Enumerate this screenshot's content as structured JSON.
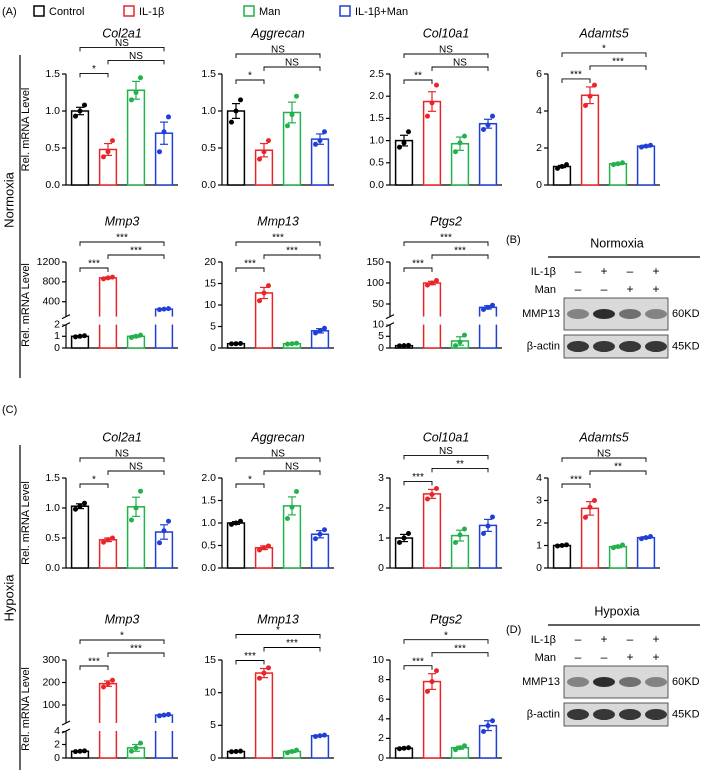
{
  "panels": [
    "(A)",
    "(C)"
  ],
  "conditions": [
    "Normoxia",
    "Hypoxia"
  ],
  "legend": [
    {
      "name": "Control",
      "color": "#000000"
    },
    {
      "name": "IL-1β",
      "color": "#e8262a"
    },
    {
      "name": "Man",
      "color": "#22b14c"
    },
    {
      "name": "IL-1β+Man",
      "color": "#1f3fd6"
    }
  ],
  "chart_data": [
    {
      "type": "bar",
      "title": "Col2a1",
      "ylabel": "Rel. mRNA Level",
      "values": [
        1.0,
        0.48,
        1.28,
        0.7
      ],
      "errors": [
        0.05,
        0.08,
        0.12,
        0.15
      ],
      "points": [
        [
          0.93,
          1.0,
          1.08
        ],
        [
          0.38,
          0.45,
          0.6
        ],
        [
          1.15,
          1.25,
          1.45
        ],
        [
          0.45,
          0.72,
          0.92
        ]
      ],
      "ylim": [
        0,
        1.5
      ],
      "yticks": [
        {
          "value": 0,
          "label": "0.0"
        },
        0.5,
        {
          "value": 1,
          "label": "1.0"
        },
        1.5
      ],
      "brackets": [
        {
          "pair": [
            0,
            1
          ],
          "label": "*"
        },
        {
          "pair": [
            1,
            3
          ],
          "label": "NS"
        },
        {
          "pair": [
            0,
            3
          ],
          "label": "NS"
        }
      ]
    },
    {
      "type": "bar",
      "title": "Aggrecan",
      "values": [
        1.0,
        0.47,
        0.98,
        0.62
      ],
      "errors": [
        0.1,
        0.09,
        0.14,
        0.07
      ],
      "points": [
        [
          0.85,
          1.0,
          1.15
        ],
        [
          0.35,
          0.45,
          0.6
        ],
        [
          0.8,
          0.95,
          1.2
        ],
        [
          0.55,
          0.6,
          0.72
        ]
      ],
      "ylim": [
        0,
        1.5
      ],
      "yticks": [
        {
          "value": 0,
          "label": "0.0"
        },
        0.5,
        {
          "value": 1,
          "label": "1.0"
        },
        1.5
      ],
      "brackets": [
        {
          "pair": [
            0,
            1
          ],
          "label": "*"
        },
        {
          "pair": [
            1,
            3
          ],
          "label": "NS"
        },
        {
          "pair": [
            0,
            3
          ],
          "label": "NS"
        }
      ]
    },
    {
      "type": "bar",
      "title": "Col10a1",
      "values": [
        1.0,
        1.88,
        0.93,
        1.38
      ],
      "errors": [
        0.12,
        0.22,
        0.15,
        0.1
      ],
      "points": [
        [
          0.85,
          0.95,
          1.2
        ],
        [
          1.55,
          1.85,
          2.25
        ],
        [
          0.75,
          0.95,
          1.1
        ],
        [
          1.25,
          1.35,
          1.55
        ]
      ],
      "ylim": [
        0,
        2.5
      ],
      "yticks": [
        {
          "value": 0,
          "label": "0.0"
        },
        0.5,
        {
          "value": 1,
          "label": "1.0"
        },
        1.5,
        {
          "value": 2,
          "label": "2.0"
        },
        2.5
      ],
      "brackets": [
        {
          "pair": [
            0,
            1
          ],
          "label": "**"
        },
        {
          "pair": [
            1,
            3
          ],
          "label": "NS"
        },
        {
          "pair": [
            0,
            3
          ],
          "label": "NS"
        }
      ]
    },
    {
      "type": "bar",
      "title": "Adamts5",
      "values": [
        1.0,
        4.85,
        1.15,
        2.1
      ],
      "errors": [
        0.06,
        0.45,
        0.05,
        0.05
      ],
      "points": [
        [
          0.9,
          1.0,
          1.1
        ],
        [
          4.3,
          4.8,
          5.4
        ],
        [
          1.1,
          1.15,
          1.2
        ],
        [
          2.05,
          2.1,
          2.15
        ]
      ],
      "ylim": [
        0,
        6
      ],
      "yticks": [
        0,
        2,
        4,
        6
      ],
      "brackets": [
        {
          "pair": [
            0,
            1
          ],
          "label": "***"
        },
        {
          "pair": [
            1,
            3
          ],
          "label": "***"
        },
        {
          "pair": [
            0,
            3
          ],
          "label": "*"
        }
      ]
    },
    {
      "type": "bar",
      "title": "Mmp3",
      "ylabel": "Rel. mRNA Level",
      "values": [
        1.0,
        880,
        1.0,
        250
      ],
      "errors": [
        0.05,
        15,
        0.08,
        10
      ],
      "points": [
        [
          0.95,
          1.0,
          1.05
        ],
        [
          860,
          880,
          895
        ],
        [
          0.9,
          1.0,
          1.1
        ],
        [
          240,
          250,
          260
        ]
      ],
      "segments": [
        {
          "ylim": [
            0,
            2
          ],
          "yticks": [
            0,
            1,
            2
          ]
        },
        {
          "ylim": [
            100,
            1200
          ],
          "yticks": [
            400,
            800,
            1200
          ]
        }
      ],
      "brackets": [
        {
          "pair": [
            0,
            1
          ],
          "label": "***"
        },
        {
          "pair": [
            1,
            3
          ],
          "label": "***"
        },
        {
          "pair": [
            0,
            3
          ],
          "label": "***"
        }
      ]
    },
    {
      "type": "bar",
      "title": "Mmp13",
      "values": [
        1.0,
        12.8,
        1.0,
        4.0
      ],
      "errors": [
        0.05,
        1.3,
        0.1,
        0.5
      ],
      "points": [
        [
          0.95,
          1.0,
          1.05
        ],
        [
          11,
          12.8,
          14.5
        ],
        [
          0.9,
          1.0,
          1.1
        ],
        [
          3.5,
          4.0,
          4.6
        ]
      ],
      "ylim": [
        0,
        20
      ],
      "yticks": [
        0,
        5,
        10,
        15,
        20
      ],
      "brackets": [
        {
          "pair": [
            0,
            1
          ],
          "label": "***"
        },
        {
          "pair": [
            1,
            3
          ],
          "label": "***"
        },
        {
          "pair": [
            0,
            3
          ],
          "label": "***"
        }
      ]
    },
    {
      "type": "bar",
      "title": "Ptgs2",
      "values": [
        1.0,
        100,
        3.0,
        42
      ],
      "errors": [
        0.05,
        4,
        1.8,
        4
      ],
      "points": [
        [
          0.9,
          1.0,
          1.1
        ],
        [
          95,
          100,
          106
        ],
        [
          1.0,
          2.5,
          5.5
        ],
        [
          37,
          42,
          47
        ]
      ],
      "segments": [
        {
          "ylim": [
            0,
            10
          ],
          "yticks": [
            0,
            5,
            10
          ]
        },
        {
          "ylim": [
            20,
            150
          ],
          "yticks": [
            50,
            100,
            150
          ]
        }
      ],
      "brackets": [
        {
          "pair": [
            0,
            1
          ],
          "label": "***"
        },
        {
          "pair": [
            1,
            3
          ],
          "label": "***"
        },
        {
          "pair": [
            0,
            3
          ],
          "label": "***"
        }
      ]
    },
    {
      "type": "bar",
      "title": "Col2a1",
      "ylabel": "Rel. mRNA Level",
      "values": [
        1.03,
        0.47,
        1.02,
        0.6
      ],
      "errors": [
        0.04,
        0.03,
        0.16,
        0.12
      ],
      "points": [
        [
          0.98,
          1.03,
          1.08
        ],
        [
          0.43,
          0.47,
          0.5
        ],
        [
          0.8,
          1.0,
          1.28
        ],
        [
          0.42,
          0.62,
          0.78
        ]
      ],
      "ylim": [
        0,
        1.5
      ],
      "yticks": [
        {
          "value": 0,
          "label": "0.0"
        },
        0.5,
        {
          "value": 1,
          "label": "1.0"
        },
        1.5
      ],
      "brackets": [
        {
          "pair": [
            0,
            1
          ],
          "label": "*"
        },
        {
          "pair": [
            1,
            3
          ],
          "label": "NS"
        },
        {
          "pair": [
            0,
            3
          ],
          "label": "NS"
        }
      ]
    },
    {
      "type": "bar",
      "title": "Aggrecan",
      "values": [
        1.0,
        0.45,
        1.38,
        0.75
      ],
      "errors": [
        0.03,
        0.04,
        0.2,
        0.08
      ],
      "points": [
        [
          0.97,
          1.0,
          1.04
        ],
        [
          0.4,
          0.45,
          0.49
        ],
        [
          1.1,
          1.35,
          1.7
        ],
        [
          0.65,
          0.75,
          0.85
        ]
      ],
      "ylim": [
        0,
        2
      ],
      "yticks": [
        {
          "value": 0,
          "label": "0.0"
        },
        0.5,
        {
          "value": 1,
          "label": "1.0"
        },
        1.5,
        {
          "value": 2,
          "label": "2.0"
        }
      ],
      "brackets": [
        {
          "pair": [
            0,
            1
          ],
          "label": "*"
        },
        {
          "pair": [
            1,
            3
          ],
          "label": "NS"
        },
        {
          "pair": [
            0,
            3
          ],
          "label": "NS"
        }
      ]
    },
    {
      "type": "bar",
      "title": "Col10a1",
      "values": [
        1.0,
        2.47,
        1.08,
        1.42
      ],
      "errors": [
        0.12,
        0.15,
        0.18,
        0.2
      ],
      "points": [
        [
          0.85,
          1.0,
          1.15
        ],
        [
          2.3,
          2.45,
          2.65
        ],
        [
          0.85,
          1.1,
          1.3
        ],
        [
          1.15,
          1.4,
          1.7
        ]
      ],
      "ylim": [
        0,
        3
      ],
      "yticks": [
        0,
        1,
        2,
        3
      ],
      "brackets": [
        {
          "pair": [
            0,
            1
          ],
          "label": "***"
        },
        {
          "pair": [
            1,
            3
          ],
          "label": "**"
        },
        {
          "pair": [
            0,
            3
          ],
          "label": "NS"
        }
      ]
    },
    {
      "type": "bar",
      "title": "Adamts5",
      "values": [
        1.0,
        2.65,
        0.95,
        1.35
      ],
      "errors": [
        0.03,
        0.3,
        0.05,
        0.04
      ],
      "points": [
        [
          0.98,
          1.0,
          1.03
        ],
        [
          2.25,
          2.7,
          3.0
        ],
        [
          0.9,
          0.95,
          1.02
        ],
        [
          1.3,
          1.35,
          1.4
        ]
      ],
      "ylim": [
        0,
        4
      ],
      "yticks": [
        0,
        1,
        2,
        3,
        4
      ],
      "brackets": [
        {
          "pair": [
            0,
            1
          ],
          "label": "***"
        },
        {
          "pair": [
            1,
            3
          ],
          "label": "**"
        },
        {
          "pair": [
            0,
            3
          ],
          "label": "NS"
        }
      ]
    },
    {
      "type": "bar",
      "title": "Mmp3",
      "ylabel": "Rel. mRNA Level",
      "values": [
        1.0,
        195,
        1.5,
        55
      ],
      "errors": [
        0.05,
        12,
        0.5,
        3
      ],
      "points": [
        [
          0.95,
          1.0,
          1.05
        ],
        [
          180,
          195,
          210
        ],
        [
          1.0,
          1.5,
          2.2
        ],
        [
          52,
          55,
          58
        ]
      ],
      "segments": [
        {
          "ylim": [
            0,
            4
          ],
          "yticks": [
            0,
            2,
            4
          ]
        },
        {
          "ylim": [
            20,
            300
          ],
          "yticks": [
            100,
            200,
            300
          ]
        }
      ],
      "brackets": [
        {
          "pair": [
            0,
            1
          ],
          "label": "***"
        },
        {
          "pair": [
            1,
            3
          ],
          "label": "***"
        },
        {
          "pair": [
            0,
            3
          ],
          "label": "*"
        }
      ]
    },
    {
      "type": "bar",
      "title": "Mmp13",
      "values": [
        1.0,
        13.0,
        1.0,
        3.4
      ],
      "errors": [
        0.05,
        0.7,
        0.15,
        0.1
      ],
      "points": [
        [
          0.95,
          1.0,
          1.05
        ],
        [
          12.2,
          13,
          13.8
        ],
        [
          0.8,
          1.0,
          1.2
        ],
        [
          3.3,
          3.4,
          3.5
        ]
      ],
      "ylim": [
        0,
        15
      ],
      "yticks": [
        0,
        5,
        10,
        15
      ],
      "brackets": [
        {
          "pair": [
            0,
            1
          ],
          "label": "***"
        },
        {
          "pair": [
            1,
            3
          ],
          "label": "***"
        },
        {
          "pair": [
            0,
            3
          ],
          "label": "*"
        }
      ]
    },
    {
      "type": "bar",
      "title": "Ptgs2",
      "values": [
        1.0,
        7.8,
        1.05,
        3.3
      ],
      "errors": [
        0.05,
        0.8,
        0.15,
        0.5
      ],
      "points": [
        [
          0.95,
          1.0,
          1.05
        ],
        [
          6.8,
          7.8,
          8.9
        ],
        [
          0.85,
          1.05,
          1.25
        ],
        [
          2.7,
          3.3,
          3.8
        ]
      ],
      "ylim": [
        0,
        10
      ],
      "yticks": [
        0,
        2,
        4,
        6,
        8,
        10
      ],
      "brackets": [
        {
          "pair": [
            0,
            1
          ],
          "label": "***"
        },
        {
          "pair": [
            1,
            3
          ],
          "label": "***"
        },
        {
          "pair": [
            0,
            3
          ],
          "label": "*"
        }
      ]
    }
  ],
  "blots": [
    {
      "label": "(B)",
      "title": "Normoxia",
      "treatments": [
        {
          "name": "IL-1β",
          "signs": [
            "–",
            "+",
            "–",
            "+"
          ]
        },
        {
          "name": "Man",
          "signs": [
            "–",
            "–",
            "+",
            "+"
          ]
        }
      ],
      "bands": [
        {
          "name": "MMP13",
          "size": "60KD"
        },
        {
          "name": "β-actin",
          "size": "45KD"
        }
      ]
    },
    {
      "label": "(D)",
      "title": "Hypoxia",
      "treatments": [
        {
          "name": "IL-1β",
          "signs": [
            "–",
            "+",
            "–",
            "+"
          ]
        },
        {
          "name": "Man",
          "signs": [
            "–",
            "–",
            "+",
            "+"
          ]
        }
      ],
      "bands": [
        {
          "name": "MMP13",
          "size": "60KD"
        },
        {
          "name": "β-actin",
          "size": "45KD"
        }
      ]
    }
  ]
}
